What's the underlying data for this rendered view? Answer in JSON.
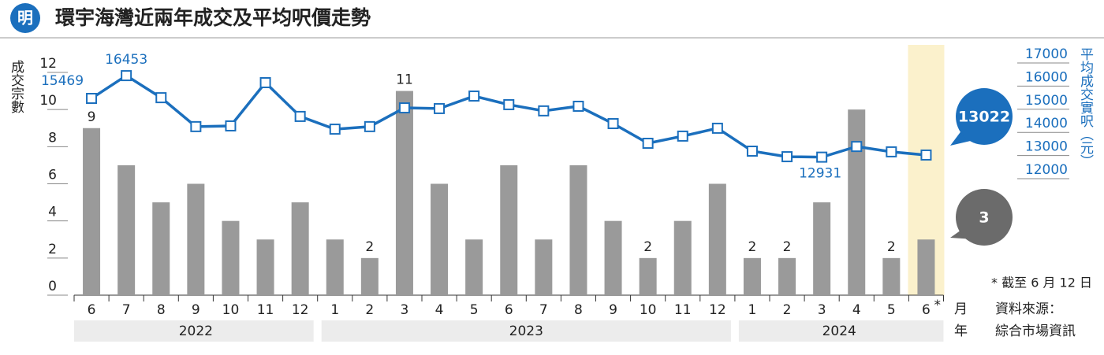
{
  "chart_data": {
    "type": "bar_line",
    "logo": "明",
    "title": "環宇海灣近兩年成交及平均呎價走勢",
    "y_label": "成交宗數",
    "y2_label": "平均成交實呎（元）",
    "x_month_label": "月",
    "x_year_label": "年",
    "footnote": "* 截至 6 月 12 日",
    "last_mark": "*",
    "source": [
      "資料來源：",
      "綜合市場資訊"
    ],
    "categories": [
      "6",
      "7",
      "8",
      "9",
      "10",
      "11",
      "12",
      "1",
      "2",
      "3",
      "4",
      "5",
      "6",
      "7",
      "8",
      "9",
      "10",
      "11",
      "12",
      "1",
      "2",
      "3",
      "4",
      "5",
      "6"
    ],
    "x_groups": [
      {
        "label": "2022",
        "count": 7
      },
      {
        "label": "2023",
        "count": 12
      },
      {
        "label": "2024",
        "count": 6
      }
    ],
    "highlight_last": true,
    "series": [
      {
        "name": "成交宗數",
        "type": "bar",
        "color": "#9a9a9a",
        "values": [
          9,
          7,
          5,
          6,
          4,
          3,
          5,
          3,
          2,
          11,
          6,
          3,
          7,
          3,
          7,
          4,
          2,
          4,
          6,
          2,
          2,
          5,
          10,
          2,
          3
        ],
        "show_labels": [
          true,
          false,
          false,
          false,
          false,
          false,
          false,
          false,
          true,
          true,
          false,
          false,
          false,
          false,
          false,
          false,
          true,
          false,
          false,
          true,
          true,
          false,
          false,
          true,
          false
        ]
      },
      {
        "name": "平均成交實呎",
        "type": "line",
        "axis": "y2",
        "color": "#1b6fbd",
        "values": [
          15469,
          16453,
          15500,
          14250,
          14280,
          16150,
          14690,
          14140,
          14250,
          15060,
          15030,
          15570,
          15200,
          14930,
          15130,
          14380,
          13530,
          13840,
          14180,
          13190,
          12950,
          12931,
          13390,
          13160,
          13022
        ],
        "show_labels": [
          true,
          true,
          false,
          false,
          false,
          false,
          false,
          false,
          false,
          false,
          false,
          false,
          false,
          false,
          false,
          false,
          false,
          false,
          false,
          false,
          false,
          true,
          false,
          false,
          false
        ]
      }
    ],
    "ylim": [
      0,
      12
    ],
    "yticks": [
      0,
      2,
      4,
      6,
      8,
      10,
      12
    ],
    "y2lim": [
      12000,
      17000
    ],
    "y2ticks": [
      12000,
      13000,
      14000,
      15000,
      16000,
      17000
    ]
  }
}
